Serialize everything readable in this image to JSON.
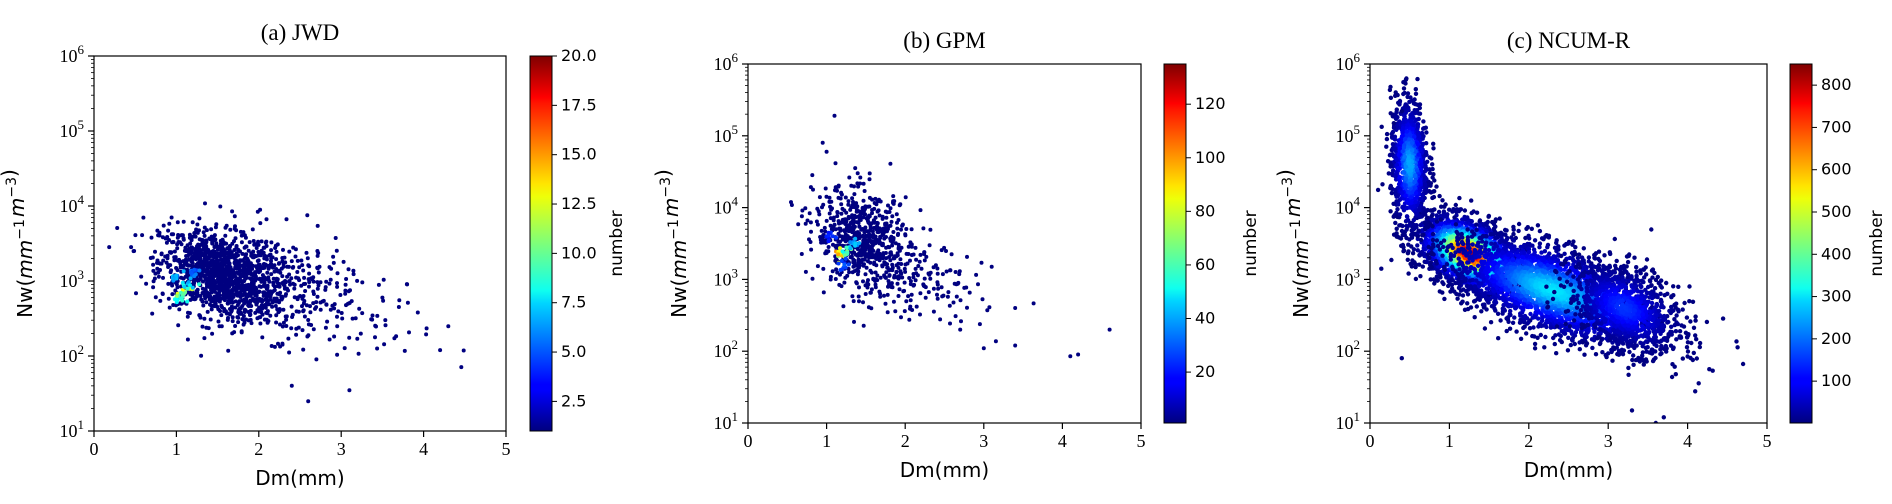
{
  "chart_data": [
    {
      "type": "scatter",
      "title": "(a) JWD",
      "xlabel": "Dm(mm)",
      "ylabel": "Nw(mm^-1 m^-3)",
      "xlim": [
        0,
        5
      ],
      "ylim": [
        10,
        1000000
      ],
      "yscale": "log",
      "xticks": [
        0,
        1,
        2,
        3,
        4,
        5
      ],
      "yticks": [
        1,
        2,
        3,
        4,
        5,
        6
      ],
      "colorbar": {
        "label": "number",
        "min": 1,
        "max": 20,
        "ticks": [
          2.5,
          5.0,
          7.5,
          10.0,
          12.5,
          15.0,
          17.5,
          20.0
        ],
        "tick_labels": [
          "2.5",
          "5.0",
          "7.5",
          "10.0",
          "12.5",
          "15.0",
          "17.5",
          "20.0"
        ]
      },
      "clusters": [
        {
          "dm": 1.5,
          "nw": 1200,
          "sd_dm": 0.35,
          "sd_log": 0.28,
          "n": 1100
        },
        {
          "dm": 2.2,
          "nw": 900,
          "sd_dm": 0.45,
          "sd_log": 0.35,
          "n": 400
        },
        {
          "dm": 3.2,
          "nw": 300,
          "sd_dm": 0.45,
          "sd_log": 0.3,
          "n": 40
        }
      ],
      "hotspots": [
        {
          "dm": 1.1,
          "nw": 700,
          "v": 13
        },
        {
          "dm": 1.05,
          "nw": 550,
          "v": 11
        },
        {
          "dm": 1.15,
          "nw": 900,
          "v": 9
        },
        {
          "dm": 1.0,
          "nw": 1100,
          "v": 7
        },
        {
          "dm": 1.2,
          "nw": 1300,
          "v": 6
        }
      ],
      "points": [
        [
          0.6,
          7000
        ],
        [
          4.3,
          250
        ],
        [
          4.2,
          120
        ],
        [
          3.8,
          900
        ],
        [
          2.6,
          25
        ],
        [
          3.1,
          35
        ],
        [
          2.4,
          40
        ],
        [
          3.5,
          600
        ],
        [
          3.7,
          450
        ]
      ]
    },
    {
      "type": "scatter",
      "title": "(b) GPM",
      "xlabel": "Dm(mm)",
      "ylabel": "Nw(mm^-1 m^-3)",
      "xlim": [
        0,
        5
      ],
      "ylim": [
        10,
        1000000
      ],
      "yscale": "log",
      "xticks": [
        0,
        1,
        2,
        3,
        4,
        5
      ],
      "yticks": [
        1,
        2,
        3,
        4,
        5,
        6
      ],
      "colorbar": {
        "label": "number",
        "min": 1,
        "max": 135,
        "ticks": [
          20,
          40,
          60,
          80,
          100,
          120
        ],
        "tick_labels": [
          "20",
          "40",
          "60",
          "80",
          "100",
          "120"
        ]
      },
      "clusters": [
        {
          "dm": 1.45,
          "nw": 3500,
          "sd_dm": 0.3,
          "sd_log": 0.35,
          "n": 650
        },
        {
          "dm": 2.2,
          "nw": 1000,
          "sd_dm": 0.4,
          "sd_log": 0.3,
          "n": 150
        }
      ],
      "hotspots": [
        {
          "dm": 1.15,
          "nw": 2200,
          "v": 100
        },
        {
          "dm": 1.25,
          "nw": 2600,
          "v": 70
        },
        {
          "dm": 1.35,
          "nw": 3000,
          "v": 45
        },
        {
          "dm": 1.2,
          "nw": 1600,
          "v": 30
        },
        {
          "dm": 1.05,
          "nw": 3800,
          "v": 25
        }
      ],
      "points": [
        [
          1.1,
          190000
        ],
        [
          0.95,
          80000
        ],
        [
          1.0,
          60000
        ],
        [
          4.6,
          200
        ],
        [
          4.1,
          85
        ],
        [
          4.2,
          90
        ],
        [
          3.4,
          120
        ],
        [
          3.0,
          110
        ],
        [
          3.4,
          400
        ],
        [
          3.1,
          1500
        ],
        [
          2.7,
          200
        ]
      ]
    },
    {
      "type": "scatter",
      "title": "(c) NCUM-R",
      "xlabel": "Dm(mm)",
      "ylabel": "Nw(mm^-1 m^-3)",
      "xlim": [
        0,
        5
      ],
      "ylim": [
        10,
        1000000
      ],
      "yscale": "log",
      "xticks": [
        0,
        1,
        2,
        3,
        4,
        5
      ],
      "yticks": [
        1,
        2,
        3,
        4,
        5,
        6
      ],
      "colorbar": {
        "label": "number",
        "min": 1,
        "max": 850,
        "ticks": [
          100,
          200,
          300,
          400,
          500,
          600,
          700,
          800
        ],
        "tick_labels": [
          "100",
          "200",
          "300",
          "400",
          "500",
          "600",
          "700",
          "800"
        ]
      },
      "clusters": [
        {
          "dm": 1.25,
          "nw": 2300,
          "sd_dm": 0.3,
          "sd_log": 0.22,
          "v": 800,
          "n": 2200
        },
        {
          "dm": 2.3,
          "nw": 700,
          "sd_dm": 0.65,
          "sd_log": 0.3,
          "v": 300,
          "n": 2600
        },
        {
          "dm": 0.5,
          "nw": 40000,
          "sd_dm": 0.12,
          "sd_log": 0.45,
          "v": 250,
          "n": 900
        },
        {
          "dm": 3.2,
          "nw": 400,
          "sd_dm": 0.35,
          "sd_log": 0.28,
          "v": 150,
          "n": 900
        }
      ],
      "points": [
        [
          0.4,
          80
        ],
        [
          3.6,
          10
        ],
        [
          3.7,
          12
        ],
        [
          3.3,
          15
        ],
        [
          0.4,
          220000
        ],
        [
          0.3,
          150000
        ]
      ]
    }
  ]
}
